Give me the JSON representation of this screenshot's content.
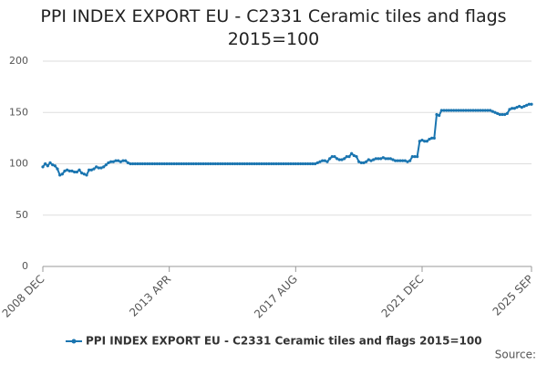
{
  "chart_data": {
    "type": "line",
    "title": "PPI INDEX EXPORT EU - C2331 Ceramic tiles and flags 2015=100",
    "categories": [
      "2008 DEC",
      null,
      null,
      null,
      null,
      null,
      null,
      null,
      null,
      null,
      null,
      null,
      null,
      null,
      null,
      null,
      null,
      null,
      null,
      null,
      null,
      null,
      null,
      null,
      null,
      null,
      null,
      null,
      null,
      null,
      null,
      null,
      null,
      null,
      null,
      null,
      null,
      null,
      null,
      null,
      null,
      null,
      null,
      null,
      null,
      null,
      null,
      null,
      null,
      null,
      null,
      null,
      "2013 APR",
      null,
      null,
      null,
      null,
      null,
      null,
      null,
      null,
      null,
      null,
      null,
      null,
      null,
      null,
      null,
      null,
      null,
      null,
      null,
      null,
      null,
      null,
      null,
      null,
      null,
      null,
      null,
      null,
      null,
      null,
      null,
      null,
      null,
      null,
      null,
      null,
      null,
      null,
      null,
      null,
      null,
      null,
      null,
      null,
      null,
      null,
      null,
      null,
      null,
      null,
      null,
      "2017 AUG",
      null,
      null,
      null,
      null,
      null,
      null,
      null,
      null,
      null,
      null,
      null,
      null,
      null,
      null,
      null,
      null,
      null,
      null,
      null,
      null,
      null,
      null,
      null,
      null,
      null,
      null,
      null,
      null,
      null,
      null,
      null,
      null,
      null,
      null,
      null,
      null,
      null,
      null,
      null,
      null,
      null,
      null,
      null,
      null,
      null,
      null,
      null,
      null,
      null,
      null,
      null,
      "2021 DEC",
      null,
      null,
      null,
      null,
      null,
      null,
      null,
      null,
      null,
      null,
      null,
      null,
      null,
      null,
      null,
      null,
      null,
      null,
      null,
      null,
      null,
      null,
      null,
      null,
      null,
      null,
      null,
      null,
      null,
      null,
      null,
      null,
      null,
      null,
      null,
      null,
      null,
      null,
      null,
      null,
      null,
      null,
      null,
      null,
      "2025 SEP"
    ],
    "series": [
      {
        "name": "PPI INDEX EXPORT EU - C2331 Ceramic tiles and flags 2015=100",
        "color": "#1a75b0",
        "values": [
          97,
          100,
          98,
          101,
          99,
          98,
          95,
          89,
          90,
          93,
          94,
          93,
          93,
          92,
          92,
          94,
          91,
          90,
          89,
          94,
          94,
          95,
          97,
          96,
          96,
          97,
          99,
          101,
          102,
          102,
          103,
          103,
          102,
          103,
          103,
          101,
          100,
          100,
          100,
          100,
          100,
          100,
          100,
          100,
          100,
          100,
          100,
          100,
          100,
          100,
          100,
          100,
          100,
          100,
          100,
          100,
          100,
          100,
          100,
          100,
          100,
          100,
          100,
          100,
          100,
          100,
          100,
          100,
          100,
          100,
          100,
          100,
          100,
          100,
          100,
          100,
          100,
          100,
          100,
          100,
          100,
          100,
          100,
          100,
          100,
          100,
          100,
          100,
          100,
          100,
          100,
          100,
          100,
          100,
          100,
          100,
          100,
          100,
          100,
          100,
          100,
          100,
          100,
          100,
          100,
          100,
          100,
          100,
          100,
          100,
          100,
          100,
          100,
          101,
          102,
          103,
          103,
          102,
          105,
          107,
          107,
          105,
          104,
          104,
          105,
          107,
          107,
          110,
          108,
          107,
          102,
          101,
          101,
          102,
          104,
          103,
          104,
          105,
          105,
          105,
          106,
          105,
          105,
          105,
          104,
          103,
          103,
          103,
          103,
          103,
          102,
          103,
          107,
          107,
          107,
          122,
          123,
          122,
          122,
          124,
          125,
          125,
          148,
          147,
          152,
          152,
          152,
          152,
          152,
          152,
          152,
          152,
          152,
          152,
          152,
          152,
          152,
          152,
          152,
          152,
          152,
          152,
          152,
          152,
          152,
          151,
          150,
          149,
          148,
          148,
          148,
          149,
          153,
          154,
          154,
          155,
          156,
          155,
          156,
          157,
          158,
          158
        ]
      }
    ],
    "ylim": [
      0,
      200
    ],
    "yticks": [
      0,
      50,
      100,
      150,
      200
    ],
    "grid": true,
    "legend": "bottom",
    "source": "Source:"
  }
}
